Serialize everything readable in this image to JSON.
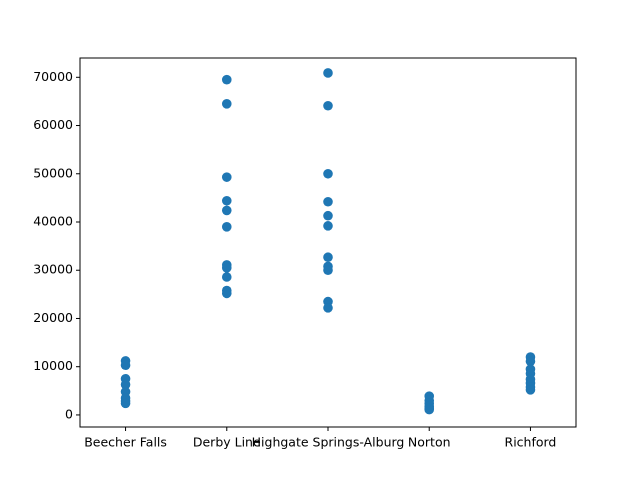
{
  "chart_data": {
    "type": "scatter",
    "title": "",
    "xlabel": "",
    "ylabel": "",
    "categories": [
      "Beecher Falls",
      "Derby Line",
      "Highgate Springs-Alburg",
      "Norton",
      "Richford"
    ],
    "ylim": [
      -2500,
      74000
    ],
    "yticks": [
      0,
      10000,
      20000,
      30000,
      40000,
      50000,
      60000,
      70000
    ],
    "ytick_labels": [
      "0",
      "10000",
      "20000",
      "30000",
      "40000",
      "50000",
      "60000",
      "70000"
    ],
    "grid": false,
    "legend": "none",
    "marker_color": "#1f77b4",
    "series": [
      {
        "points": [
          {
            "category": "Beecher Falls",
            "y": 11200
          },
          {
            "category": "Beecher Falls",
            "y": 10300
          },
          {
            "category": "Beecher Falls",
            "y": 7500
          },
          {
            "category": "Beecher Falls",
            "y": 6300
          },
          {
            "category": "Beecher Falls",
            "y": 4800
          },
          {
            "category": "Beecher Falls",
            "y": 3500
          },
          {
            "category": "Beecher Falls",
            "y": 2900
          },
          {
            "category": "Beecher Falls",
            "y": 2400
          },
          {
            "category": "Derby Line",
            "y": 69500
          },
          {
            "category": "Derby Line",
            "y": 64500
          },
          {
            "category": "Derby Line",
            "y": 49300
          },
          {
            "category": "Derby Line",
            "y": 44400
          },
          {
            "category": "Derby Line",
            "y": 42400
          },
          {
            "category": "Derby Line",
            "y": 39000
          },
          {
            "category": "Derby Line",
            "y": 31100
          },
          {
            "category": "Derby Line",
            "y": 30500
          },
          {
            "category": "Derby Line",
            "y": 28600
          },
          {
            "category": "Derby Line",
            "y": 25800
          },
          {
            "category": "Derby Line",
            "y": 25200
          },
          {
            "category": "Highgate Springs-Alburg",
            "y": 70900
          },
          {
            "category": "Highgate Springs-Alburg",
            "y": 64100
          },
          {
            "category": "Highgate Springs-Alburg",
            "y": 50000
          },
          {
            "category": "Highgate Springs-Alburg",
            "y": 44200
          },
          {
            "category": "Highgate Springs-Alburg",
            "y": 41300
          },
          {
            "category": "Highgate Springs-Alburg",
            "y": 39200
          },
          {
            "category": "Highgate Springs-Alburg",
            "y": 32700
          },
          {
            "category": "Highgate Springs-Alburg",
            "y": 30800
          },
          {
            "category": "Highgate Springs-Alburg",
            "y": 30000
          },
          {
            "category": "Highgate Springs-Alburg",
            "y": 23500
          },
          {
            "category": "Highgate Springs-Alburg",
            "y": 22200
          },
          {
            "category": "Norton",
            "y": 3900
          },
          {
            "category": "Norton",
            "y": 3000
          },
          {
            "category": "Norton",
            "y": 2400
          },
          {
            "category": "Norton",
            "y": 1800
          },
          {
            "category": "Norton",
            "y": 1400
          },
          {
            "category": "Norton",
            "y": 1100
          },
          {
            "category": "Richford",
            "y": 12000
          },
          {
            "category": "Richford",
            "y": 11100
          },
          {
            "category": "Richford",
            "y": 9500
          },
          {
            "category": "Richford",
            "y": 8600
          },
          {
            "category": "Richford",
            "y": 7400
          },
          {
            "category": "Richford",
            "y": 6600
          },
          {
            "category": "Richford",
            "y": 5800
          },
          {
            "category": "Richford",
            "y": 5200
          }
        ]
      }
    ]
  }
}
